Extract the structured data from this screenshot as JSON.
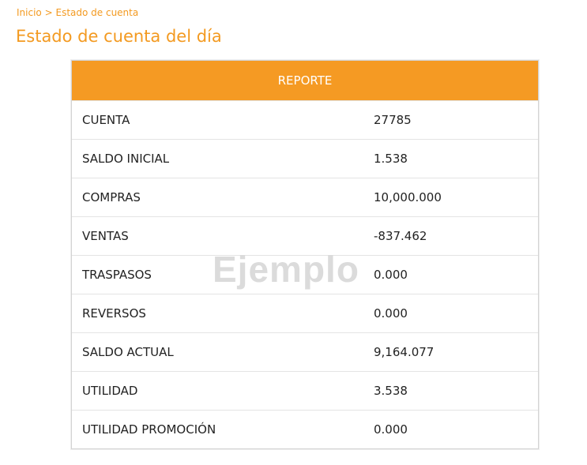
{
  "breadcrumb": {
    "home": "Inicio",
    "separator": ">",
    "current": "Estado de cuenta"
  },
  "page_title": "Estado de cuenta del día",
  "report": {
    "header": "REPORTE",
    "rows": [
      {
        "label": "CUENTA",
        "value": "27785"
      },
      {
        "label": "SALDO INICIAL",
        "value": "1.538"
      },
      {
        "label": "COMPRAS",
        "value": "10,000.000"
      },
      {
        "label": "VENTAS",
        "value": "-837.462"
      },
      {
        "label": "TRASPASOS",
        "value": "0.000"
      },
      {
        "label": "REVERSOS",
        "value": "0.000"
      },
      {
        "label": "SALDO ACTUAL",
        "value": "9,164.077"
      },
      {
        "label": "UTILIDAD",
        "value": "3.538"
      },
      {
        "label": "UTILIDAD PROMOCIÓN",
        "value": "0.000"
      }
    ]
  },
  "watermark": "Ejemplo",
  "colors": {
    "accent": "#f59a23",
    "text": "#222222",
    "border": "#d3d3d3"
  }
}
